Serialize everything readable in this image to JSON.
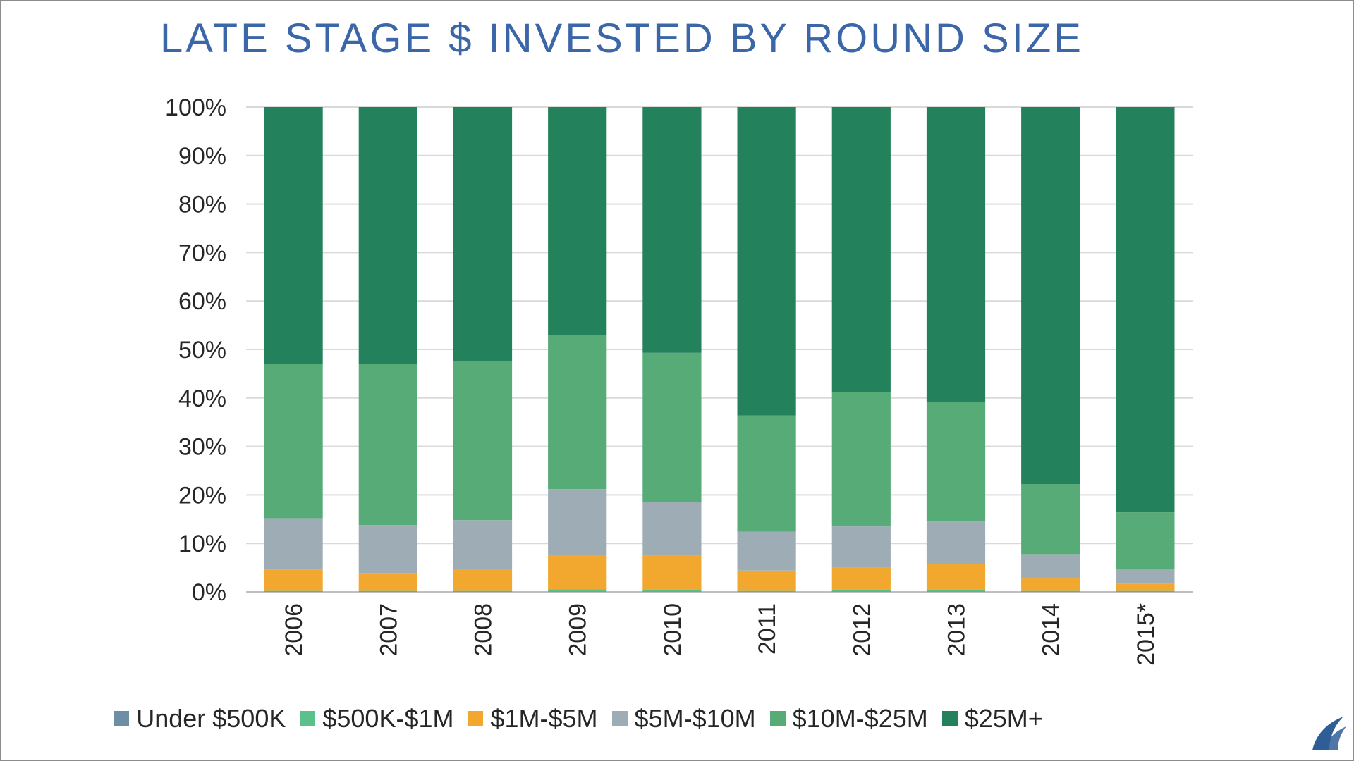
{
  "slide": {
    "title": "LATE STAGE $ INVESTED BY ROUND SIZE"
  },
  "chart_data": {
    "type": "bar",
    "stacked": true,
    "normalized": true,
    "categories": [
      "2006",
      "2007",
      "2008",
      "2009",
      "2010",
      "2011",
      "2012",
      "2013",
      "2014",
      "2015*"
    ],
    "series": [
      {
        "name": "Under $500K",
        "color": "#6e8ea6",
        "values": [
          0.1,
          0.1,
          0.1,
          0.1,
          0.1,
          0.1,
          0.1,
          0.1,
          0.1,
          0.1
        ]
      },
      {
        "name": "$500K-$1M",
        "color": "#5cc08a",
        "values": [
          0.1,
          0.1,
          0.1,
          0.4,
          0.3,
          0.1,
          0.3,
          0.3,
          0.1,
          0.1
        ]
      },
      {
        "name": "$1M-$5M",
        "color": "#f2a72e",
        "values": [
          4.4,
          3.7,
          4.5,
          7.2,
          7.1,
          4.2,
          4.6,
          5.4,
          2.7,
          1.5
        ]
      },
      {
        "name": "$5M-$10M",
        "color": "#9eadb5",
        "values": [
          10.6,
          9.9,
          10.1,
          13.5,
          11.0,
          8.0,
          8.5,
          8.7,
          4.9,
          2.9
        ]
      },
      {
        "name": "$10M-$25M",
        "color": "#57ab77",
        "values": [
          31.8,
          33.2,
          32.8,
          31.8,
          30.8,
          24.0,
          27.7,
          24.6,
          14.4,
          11.8
        ]
      },
      {
        "name": "$25M+",
        "color": "#23825b",
        "values": [
          53.0,
          53.0,
          52.4,
          47.0,
          50.7,
          63.6,
          58.8,
          60.9,
          77.8,
          83.6
        ]
      }
    ],
    "yticks": [
      "0%",
      "10%",
      "20%",
      "30%",
      "40%",
      "50%",
      "60%",
      "70%",
      "80%",
      "90%",
      "100%"
    ],
    "ylim": [
      0,
      100
    ],
    "grid": true,
    "legend_position": "bottom",
    "xlabel": "",
    "ylabel": ""
  }
}
